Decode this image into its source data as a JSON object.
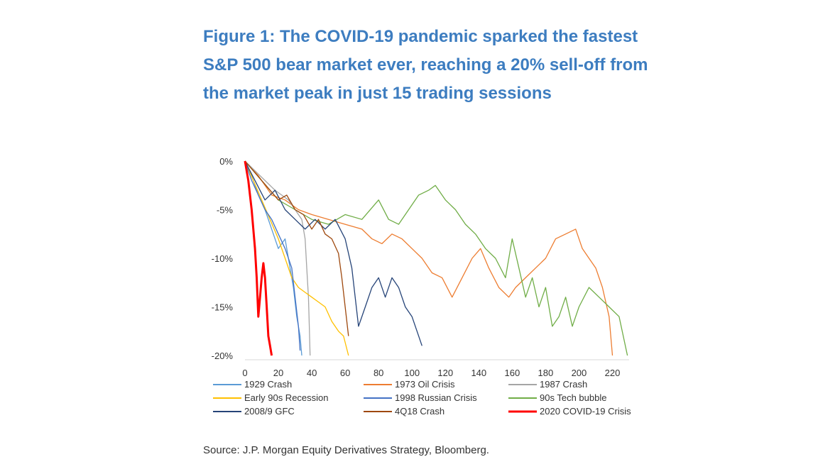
{
  "title": "Figure 1: The COVID-19 pandemic sparked the fastest S&P 500 bear market ever, reaching a 20% sell-off from the market peak in just 15 trading sessions",
  "source": "Source: J.P. Morgan Equity Derivatives Strategy, Bloomberg.",
  "chart_data": {
    "type": "line",
    "title": "",
    "xlabel": "",
    "ylabel": "",
    "xlim": [
      0,
      230
    ],
    "ylim": [
      -20,
      0
    ],
    "x_ticks": [
      "0",
      "20",
      "40",
      "60",
      "80",
      "100",
      "120",
      "140",
      "160",
      "180",
      "200",
      "220"
    ],
    "y_ticks": [
      "0%",
      "-5%",
      "-10%",
      "-15%",
      "-20%"
    ],
    "grid": false,
    "legend_position": "bottom",
    "series": [
      {
        "name": "1929 Crash",
        "color": "#5b9bd5",
        "points": [
          [
            0,
            0
          ],
          [
            4,
            -1.5
          ],
          [
            8,
            -3.5
          ],
          [
            12,
            -5
          ],
          [
            16,
            -7
          ],
          [
            20,
            -9
          ],
          [
            24,
            -8
          ],
          [
            27,
            -11
          ],
          [
            29,
            -13
          ],
          [
            31,
            -16
          ],
          [
            33,
            -18
          ],
          [
            34,
            -20
          ]
        ]
      },
      {
        "name": "1973 Oil Crisis",
        "color": "#ed7d31",
        "points": [
          [
            0,
            0
          ],
          [
            8,
            -1.5
          ],
          [
            16,
            -3.5
          ],
          [
            24,
            -4
          ],
          [
            32,
            -5
          ],
          [
            40,
            -5.5
          ],
          [
            50,
            -6
          ],
          [
            60,
            -6.5
          ],
          [
            70,
            -7
          ],
          [
            76,
            -8
          ],
          [
            82,
            -8.5
          ],
          [
            88,
            -7.5
          ],
          [
            94,
            -8
          ],
          [
            100,
            -9
          ],
          [
            106,
            -10
          ],
          [
            112,
            -11.5
          ],
          [
            118,
            -12
          ],
          [
            124,
            -14
          ],
          [
            130,
            -12
          ],
          [
            136,
            -10
          ],
          [
            141,
            -9
          ],
          [
            146,
            -11
          ],
          [
            152,
            -13
          ],
          [
            158,
            -14
          ],
          [
            162,
            -13
          ],
          [
            168,
            -12
          ],
          [
            174,
            -11
          ],
          [
            180,
            -10
          ],
          [
            186,
            -8
          ],
          [
            192,
            -7.5
          ],
          [
            198,
            -7
          ],
          [
            202,
            -9
          ],
          [
            206,
            -10
          ],
          [
            210,
            -11
          ],
          [
            214,
            -13
          ],
          [
            218,
            -16
          ],
          [
            220,
            -20
          ]
        ]
      },
      {
        "name": "1987 Crash",
        "color": "#a5a5a5",
        "points": [
          [
            0,
            0
          ],
          [
            6,
            -1
          ],
          [
            12,
            -2
          ],
          [
            18,
            -3
          ],
          [
            22,
            -3.5
          ],
          [
            26,
            -4
          ],
          [
            30,
            -5
          ],
          [
            34,
            -6
          ],
          [
            36,
            -8
          ],
          [
            37,
            -11
          ],
          [
            38,
            -14
          ],
          [
            38.5,
            -17
          ],
          [
            39,
            -20
          ]
        ]
      },
      {
        "name": "Early 90s Recession",
        "color": "#ffc000",
        "points": [
          [
            0,
            0
          ],
          [
            5,
            -2
          ],
          [
            10,
            -4
          ],
          [
            15,
            -6
          ],
          [
            20,
            -8
          ],
          [
            24,
            -10
          ],
          [
            28,
            -12
          ],
          [
            32,
            -13
          ],
          [
            36,
            -13.5
          ],
          [
            40,
            -14
          ],
          [
            44,
            -14.5
          ],
          [
            48,
            -15
          ],
          [
            52,
            -16.5
          ],
          [
            56,
            -17.5
          ],
          [
            59,
            -18
          ],
          [
            62,
            -20
          ]
        ]
      },
      {
        "name": "1998 Russian Crisis",
        "color": "#4472c4",
        "points": [
          [
            0,
            0
          ],
          [
            4,
            -2
          ],
          [
            8,
            -3.5
          ],
          [
            12,
            -5
          ],
          [
            16,
            -6
          ],
          [
            20,
            -7.5
          ],
          [
            24,
            -9
          ],
          [
            28,
            -11
          ],
          [
            30,
            -14
          ],
          [
            32,
            -17
          ],
          [
            33,
            -19.5
          ]
        ]
      },
      {
        "name": "90s Tech bubble",
        "color": "#70ad47",
        "points": [
          [
            0,
            0
          ],
          [
            10,
            -2
          ],
          [
            20,
            -4
          ],
          [
            30,
            -5
          ],
          [
            40,
            -6
          ],
          [
            50,
            -6.5
          ],
          [
            60,
            -5.5
          ],
          [
            70,
            -6
          ],
          [
            80,
            -4
          ],
          [
            86,
            -6
          ],
          [
            92,
            -6.5
          ],
          [
            98,
            -5
          ],
          [
            104,
            -3.5
          ],
          [
            110,
            -3
          ],
          [
            114,
            -2.5
          ],
          [
            120,
            -4
          ],
          [
            126,
            -5
          ],
          [
            132,
            -6.5
          ],
          [
            138,
            -7.5
          ],
          [
            144,
            -9
          ],
          [
            150,
            -10
          ],
          [
            156,
            -12
          ],
          [
            160,
            -8
          ],
          [
            164,
            -11
          ],
          [
            168,
            -14
          ],
          [
            172,
            -12
          ],
          [
            176,
            -15
          ],
          [
            180,
            -13
          ],
          [
            184,
            -17
          ],
          [
            188,
            -16
          ],
          [
            192,
            -14
          ],
          [
            196,
            -17
          ],
          [
            200,
            -15
          ],
          [
            206,
            -13
          ],
          [
            212,
            -14
          ],
          [
            218,
            -15
          ],
          [
            224,
            -16
          ],
          [
            229,
            -20
          ]
        ]
      },
      {
        "name": "2008/9 GFC",
        "color": "#264478",
        "points": [
          [
            0,
            0
          ],
          [
            6,
            -2
          ],
          [
            12,
            -4
          ],
          [
            18,
            -3
          ],
          [
            24,
            -5
          ],
          [
            30,
            -6
          ],
          [
            36,
            -7
          ],
          [
            42,
            -6
          ],
          [
            48,
            -7
          ],
          [
            54,
            -6
          ],
          [
            60,
            -8
          ],
          [
            64,
            -11
          ],
          [
            66,
            -14
          ],
          [
            68,
            -17
          ],
          [
            72,
            -15
          ],
          [
            76,
            -13
          ],
          [
            80,
            -12
          ],
          [
            84,
            -14
          ],
          [
            88,
            -12
          ],
          [
            92,
            -13
          ],
          [
            96,
            -15
          ],
          [
            100,
            -16
          ],
          [
            104,
            -18
          ],
          [
            106,
            -19
          ]
        ]
      },
      {
        "name": "4Q18 Crash",
        "color": "#9e480e",
        "points": [
          [
            0,
            0
          ],
          [
            5,
            -1
          ],
          [
            10,
            -2
          ],
          [
            15,
            -3
          ],
          [
            20,
            -4
          ],
          [
            25,
            -3.5
          ],
          [
            30,
            -5
          ],
          [
            35,
            -5.5
          ],
          [
            40,
            -7
          ],
          [
            44,
            -6
          ],
          [
            48,
            -7.5
          ],
          [
            52,
            -8
          ],
          [
            56,
            -9.5
          ],
          [
            58,
            -12
          ],
          [
            60,
            -15
          ],
          [
            62,
            -18
          ]
        ]
      },
      {
        "name": "2020 COVID-19 Crisis",
        "color": "#ff0000",
        "points": [
          [
            0,
            0
          ],
          [
            2,
            -2
          ],
          [
            4,
            -5
          ],
          [
            6,
            -9
          ],
          [
            7,
            -12
          ],
          [
            8,
            -16
          ],
          [
            9,
            -14
          ],
          [
            10,
            -12
          ],
          [
            11,
            -10.5
          ],
          [
            12,
            -12
          ],
          [
            13,
            -15
          ],
          [
            14,
            -18
          ],
          [
            15,
            -19
          ],
          [
            16,
            -20
          ]
        ]
      }
    ]
  }
}
